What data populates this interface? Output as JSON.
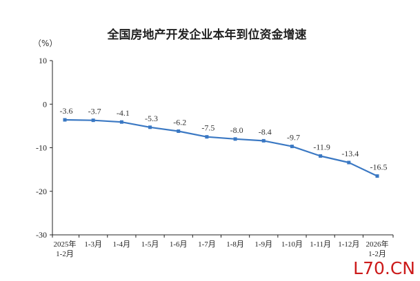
{
  "watermark": "L70.CN",
  "colors": {
    "line": "#3a78c3",
    "marker": "#3a78c3",
    "axis": "#222222",
    "watermark": "#cc1a1a"
  },
  "chart_data": {
    "type": "line",
    "title": "全国房地产开发企业本年到位资金增速",
    "unit": "（%）",
    "xlabel": "",
    "ylabel": "",
    "ylim": [
      -30,
      10
    ],
    "yticks": [
      10,
      0,
      -10,
      -20,
      -30
    ],
    "grid": false,
    "categories": [
      [
        "2025年",
        "1-2月"
      ],
      [
        "1-3月"
      ],
      [
        "1-4月"
      ],
      [
        "1-5月"
      ],
      [
        "1-6月"
      ],
      [
        "1-7月"
      ],
      [
        "1-8月"
      ],
      [
        "1-9月"
      ],
      [
        "1-10月"
      ],
      [
        "1-11月"
      ],
      [
        "1-12月"
      ],
      [
        "2026年",
        "1-2月"
      ]
    ],
    "series": [
      {
        "values": [
          -3.6,
          -3.7,
          -4.1,
          -5.3,
          -6.2,
          -7.5,
          -8.0,
          -8.4,
          -9.7,
          -11.9,
          -13.4,
          -16.5
        ],
        "labels": [
          "-3.6",
          "-3.7",
          "-4.1",
          "-5.3",
          "-6.2",
          "-7.5",
          "-8.0",
          "-8.4",
          "-9.7",
          "-11.9",
          "-13.4",
          "-16.5"
        ]
      }
    ]
  }
}
